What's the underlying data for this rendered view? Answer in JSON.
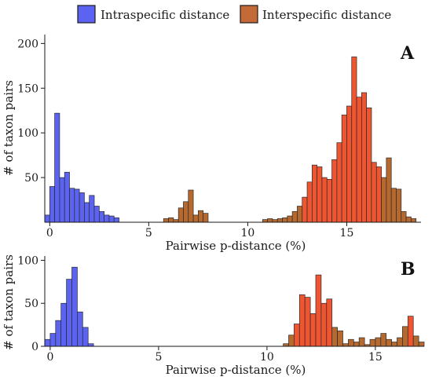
{
  "legend": {
    "items": [
      {
        "label": "Intraspecific distance",
        "color": "#5b63f0"
      },
      {
        "label": "Interspecific  distance",
        "color": "#c46a38"
      }
    ]
  },
  "colors": {
    "intra": "#5b63f0",
    "inter_low": "#b5692f",
    "inter_high": "#ee5530"
  },
  "chart_data": [
    {
      "type": "bar",
      "panel_label": "A",
      "xlabel": "Pairwise p-distance (%)",
      "ylabel": "# of taxon pairs",
      "xlim": [
        -0.25,
        18.75
      ],
      "ylim": [
        0,
        210
      ],
      "xticks": [
        0,
        5,
        10,
        15
      ],
      "yticks": [
        50,
        100,
        150,
        200
      ],
      "bin_width": 0.25,
      "grid": false,
      "series": [
        {
          "name": "Intraspecific distance",
          "bins": [
            {
              "x": -0.25,
              "y": 8
            },
            {
              "x": 0.0,
              "y": 40
            },
            {
              "x": 0.25,
              "y": 122
            },
            {
              "x": 0.5,
              "y": 50
            },
            {
              "x": 0.75,
              "y": 56
            },
            {
              "x": 1.0,
              "y": 38
            },
            {
              "x": 1.25,
              "y": 37
            },
            {
              "x": 1.5,
              "y": 33
            },
            {
              "x": 1.75,
              "y": 22
            },
            {
              "x": 2.0,
              "y": 30
            },
            {
              "x": 2.25,
              "y": 18
            },
            {
              "x": 2.5,
              "y": 12
            },
            {
              "x": 2.75,
              "y": 8
            },
            {
              "x": 3.0,
              "y": 7
            },
            {
              "x": 3.25,
              "y": 5
            }
          ]
        },
        {
          "name": "Interspecific  distance",
          "bins": [
            {
              "x": 5.75,
              "y": 4
            },
            {
              "x": 6.0,
              "y": 5
            },
            {
              "x": 6.25,
              "y": 3
            },
            {
              "x": 6.5,
              "y": 16
            },
            {
              "x": 6.75,
              "y": 23
            },
            {
              "x": 7.0,
              "y": 36
            },
            {
              "x": 7.25,
              "y": 8
            },
            {
              "x": 7.5,
              "y": 13
            },
            {
              "x": 7.75,
              "y": 10
            },
            {
              "x": 10.75,
              "y": 3
            },
            {
              "x": 11.0,
              "y": 4
            },
            {
              "x": 11.25,
              "y": 3
            },
            {
              "x": 11.5,
              "y": 4
            },
            {
              "x": 11.75,
              "y": 5
            },
            {
              "x": 12.0,
              "y": 7
            },
            {
              "x": 12.25,
              "y": 12
            },
            {
              "x": 12.5,
              "y": 18
            },
            {
              "x": 12.75,
              "y": 28
            },
            {
              "x": 13.0,
              "y": 45
            },
            {
              "x": 13.25,
              "y": 64
            },
            {
              "x": 13.5,
              "y": 62
            },
            {
              "x": 13.75,
              "y": 50
            },
            {
              "x": 14.0,
              "y": 48
            },
            {
              "x": 14.25,
              "y": 70
            },
            {
              "x": 14.5,
              "y": 89
            },
            {
              "x": 14.75,
              "y": 120
            },
            {
              "x": 15.0,
              "y": 130
            },
            {
              "x": 15.25,
              "y": 185
            },
            {
              "x": 15.5,
              "y": 140
            },
            {
              "x": 15.75,
              "y": 145
            },
            {
              "x": 16.0,
              "y": 128
            },
            {
              "x": 16.25,
              "y": 67
            },
            {
              "x": 16.5,
              "y": 62
            },
            {
              "x": 16.75,
              "y": 50
            },
            {
              "x": 17.0,
              "y": 72
            },
            {
              "x": 17.25,
              "y": 38
            },
            {
              "x": 17.5,
              "y": 37
            },
            {
              "x": 17.75,
              "y": 12
            },
            {
              "x": 18.0,
              "y": 6
            },
            {
              "x": 18.25,
              "y": 4
            }
          ]
        }
      ]
    },
    {
      "type": "bar",
      "panel_label": "B",
      "xlabel": "Pairwise p-distance (%)",
      "ylabel": "# of taxon pairs",
      "xlim": [
        -0.25,
        17.25
      ],
      "ylim": [
        0,
        105
      ],
      "xticks": [
        0,
        5,
        10,
        15
      ],
      "yticks": [
        0,
        50,
        100
      ],
      "bin_width": 0.25,
      "grid": false,
      "series": [
        {
          "name": "Intraspecific distance",
          "bins": [
            {
              "x": -0.25,
              "y": 8
            },
            {
              "x": 0.0,
              "y": 15
            },
            {
              "x": 0.25,
              "y": 30
            },
            {
              "x": 0.5,
              "y": 50
            },
            {
              "x": 0.75,
              "y": 78
            },
            {
              "x": 1.0,
              "y": 92
            },
            {
              "x": 1.25,
              "y": 40
            },
            {
              "x": 1.5,
              "y": 22
            },
            {
              "x": 1.75,
              "y": 3
            }
          ]
        },
        {
          "name": "Interspecific  distance",
          "bins": [
            {
              "x": 10.75,
              "y": 3
            },
            {
              "x": 11.0,
              "y": 13
            },
            {
              "x": 11.25,
              "y": 26
            },
            {
              "x": 11.5,
              "y": 60
            },
            {
              "x": 11.75,
              "y": 57
            },
            {
              "x": 12.0,
              "y": 38
            },
            {
              "x": 12.25,
              "y": 83
            },
            {
              "x": 12.5,
              "y": 50
            },
            {
              "x": 12.75,
              "y": 55
            },
            {
              "x": 13.0,
              "y": 22
            },
            {
              "x": 13.25,
              "y": 18
            },
            {
              "x": 13.5,
              "y": 3
            },
            {
              "x": 13.75,
              "y": 8
            },
            {
              "x": 14.0,
              "y": 5
            },
            {
              "x": 14.25,
              "y": 10
            },
            {
              "x": 14.5,
              "y": 2
            },
            {
              "x": 14.75,
              "y": 8
            },
            {
              "x": 15.0,
              "y": 10
            },
            {
              "x": 15.25,
              "y": 15
            },
            {
              "x": 15.5,
              "y": 8
            },
            {
              "x": 15.75,
              "y": 5
            },
            {
              "x": 16.0,
              "y": 10
            },
            {
              "x": 16.25,
              "y": 23
            },
            {
              "x": 16.5,
              "y": 35
            },
            {
              "x": 16.75,
              "y": 12
            },
            {
              "x": 17.0,
              "y": 5
            }
          ]
        }
      ]
    }
  ]
}
